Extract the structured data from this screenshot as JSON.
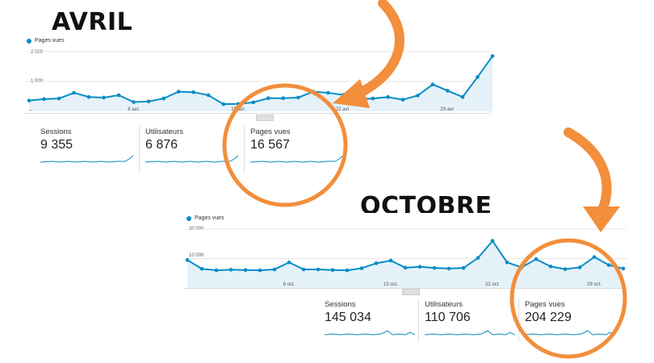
{
  "headings": {
    "avril": "AVRIL",
    "octobre": "OCTOBRE"
  },
  "colors": {
    "series": "#058dc7",
    "fill": "#e5f2f9",
    "accent": "#f28e3c"
  },
  "chart_data": [
    {
      "type": "area",
      "title": "AVRIL",
      "series": [
        {
          "name": "Pages vues",
          "values": [
            360,
            410,
            430,
            620,
            480,
            460,
            540,
            310,
            330,
            430,
            660,
            640,
            540,
            240,
            250,
            300,
            440,
            440,
            460,
            660,
            620,
            550,
            410,
            430,
            480,
            390,
            530,
            900,
            690,
            480,
            1150,
            1850
          ]
        }
      ],
      "ylim": [
        0,
        2000
      ],
      "y_ticks": [
        "2 000",
        "1 000"
      ],
      "x_ticks": [
        {
          "label": "8 avr.",
          "index": 7
        },
        {
          "label": "15 avr.",
          "index": 14
        },
        {
          "label": "22 avr.",
          "index": 21
        },
        {
          "label": "29 avr.",
          "index": 28
        }
      ],
      "x_start_label": "...",
      "grid": true,
      "legend_position": "top-left"
    },
    {
      "type": "area",
      "title": "OCTOBRE",
      "series": [
        {
          "name": "Pages vues",
          "values": [
            9500,
            6500,
            6000,
            6200,
            6100,
            6000,
            6300,
            8700,
            6300,
            6300,
            6100,
            6000,
            6700,
            8400,
            9300,
            6900,
            7200,
            6800,
            6600,
            6800,
            10200,
            16000,
            8700,
            7000,
            9800,
            7300,
            6400,
            7000,
            10500,
            7800,
            6600
          ]
        }
      ],
      "ylim": [
        0,
        20000
      ],
      "y_ticks": [
        "20 000",
        "10 000"
      ],
      "x_ticks": [
        {
          "label": "8 oct.",
          "index": 7
        },
        {
          "label": "15 oct.",
          "index": 14
        },
        {
          "label": "22 oct.",
          "index": 21
        },
        {
          "label": "29 oct.",
          "index": 28
        }
      ],
      "grid": true,
      "legend_position": "top-left"
    }
  ],
  "avril_metrics": [
    {
      "label": "Sessions",
      "value": "9 355"
    },
    {
      "label": "Utilisateurs",
      "value": "6 876"
    },
    {
      "label": "Pages vues",
      "value": "16 567"
    }
  ],
  "octobre_metrics": [
    {
      "label": "Sessions",
      "value": "145 034"
    },
    {
      "label": "Utilisateurs",
      "value": "110 706"
    },
    {
      "label": "Pages vues",
      "value": "204 229"
    }
  ],
  "icons": {
    "arrows": "curved-arrow-icon",
    "circles": "highlight-circle-icon"
  }
}
